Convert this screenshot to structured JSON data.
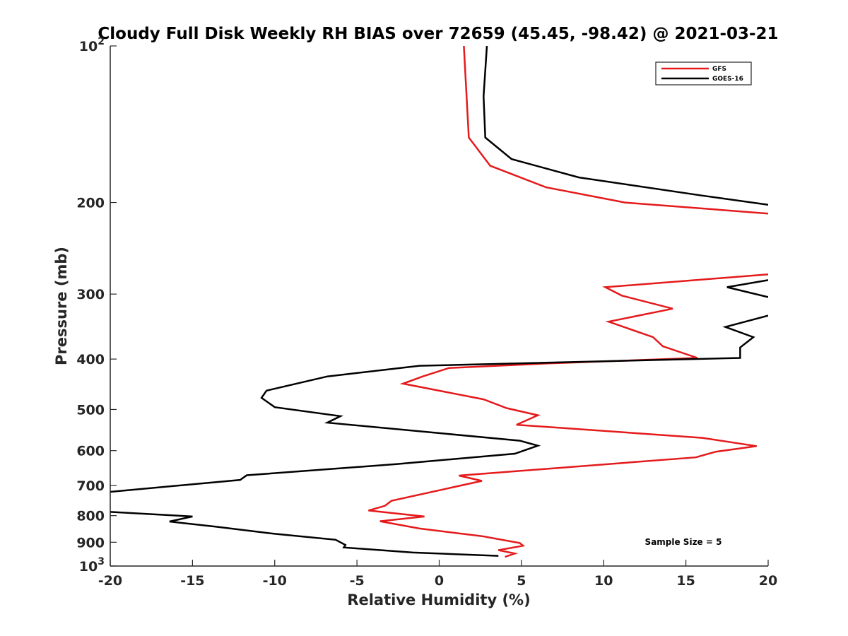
{
  "chart_data": {
    "type": "line",
    "title": "Cloudy Full Disk Weekly RH BIAS over 72659 (45.45, -98.42) @ 2021-03-21",
    "xlabel": "Relative Humidity (%)",
    "ylabel": "Pressure (mb)",
    "xlim": [
      -20,
      20
    ],
    "ylim": [
      100,
      1000
    ],
    "y_scale": "log",
    "y_reversed": true,
    "grid": false,
    "legend_position": "top-right",
    "x_ticks": [
      "-20",
      "-15",
      "-10",
      "-5",
      "0",
      "5",
      "10",
      "15",
      "20"
    ],
    "y_ticks": [
      {
        "value": 100,
        "label": "10",
        "exp": "2"
      },
      {
        "value": 200,
        "label": "200"
      },
      {
        "value": 300,
        "label": "300"
      },
      {
        "value": 400,
        "label": "400"
      },
      {
        "value": 500,
        "label": "500"
      },
      {
        "value": 600,
        "label": "600"
      },
      {
        "value": 700,
        "label": "700"
      },
      {
        "value": 800,
        "label": "800"
      },
      {
        "value": 900,
        "label": "900"
      },
      {
        "value": 1000,
        "label": "10",
        "exp": "3"
      }
    ],
    "annotation": "Sample Size = 5",
    "series": [
      {
        "name": "GFS",
        "color": "#e41a1c",
        "points": [
          [
            1.5,
            100
          ],
          [
            1.8,
            150
          ],
          [
            3.1,
            170
          ],
          [
            6.5,
            187
          ],
          [
            11.3,
            200
          ],
          [
            20,
            210
          ],
          [
            null,
            null
          ],
          [
            20,
            275
          ],
          [
            10.1,
            291
          ],
          [
            11.1,
            302
          ],
          [
            14.2,
            320
          ],
          [
            10.3,
            339
          ],
          [
            13.0,
            363
          ],
          [
            13.6,
            378
          ],
          [
            15.7,
            398
          ],
          [
            6.5,
            408
          ],
          [
            0.6,
            416
          ],
          [
            -1.0,
            432
          ],
          [
            -2.2,
            446
          ],
          [
            2.7,
            478
          ],
          [
            4.1,
            497
          ],
          [
            6.0,
            513
          ],
          [
            4.7,
            535
          ],
          [
            16.0,
            567
          ],
          [
            19.3,
            588
          ],
          [
            16.8,
            603
          ],
          [
            15.6,
            618
          ],
          [
            1.2,
            670
          ],
          [
            2.6,
            686
          ],
          [
            -2.9,
            749
          ],
          [
            -3.3,
            766
          ],
          [
            -4.3,
            782
          ],
          [
            -0.9,
            803
          ],
          [
            -3.6,
            820
          ],
          [
            -1.2,
            847
          ],
          [
            2.6,
            876
          ],
          [
            4.9,
            903
          ],
          [
            5.1,
            914
          ],
          [
            3.6,
            932
          ],
          [
            4.6,
            946
          ],
          [
            4.0,
            960
          ]
        ]
      },
      {
        "name": "GOES-16",
        "color": "#000000",
        "points": [
          [
            2.9,
            100
          ],
          [
            2.7,
            125
          ],
          [
            2.8,
            150
          ],
          [
            4.4,
            165
          ],
          [
            8.5,
            179
          ],
          [
            16.0,
            194
          ],
          [
            20,
            202
          ],
          [
            null,
            null
          ],
          [
            20,
            282
          ],
          [
            17.5,
            291
          ],
          [
            20,
            304
          ],
          [
            null,
            null
          ],
          [
            20,
            330
          ],
          [
            17.4,
            347
          ],
          [
            19.1,
            363
          ],
          [
            18.3,
            380
          ],
          [
            18.3,
            398
          ],
          [
            -1.2,
            412
          ],
          [
            -6.8,
            432
          ],
          [
            -10.5,
            460
          ],
          [
            -10.8,
            475
          ],
          [
            -10.0,
            495
          ],
          [
            -6.0,
            515
          ],
          [
            -6.8,
            530
          ],
          [
            4.9,
            574
          ],
          [
            6.0,
            587
          ],
          [
            4.6,
            608
          ],
          [
            -2.6,
            637
          ],
          [
            -11.7,
            669
          ],
          [
            -12.1,
            683
          ],
          [
            -20,
            720
          ],
          [
            null,
            null
          ],
          [
            -20,
            787
          ],
          [
            -15.0,
            803
          ],
          [
            -16.4,
            821
          ],
          [
            -13.6,
            840
          ],
          [
            -10.0,
            867
          ],
          [
            -6.3,
            890
          ],
          [
            -5.7,
            911
          ],
          [
            -5.8,
            921
          ],
          [
            -1.6,
            942
          ],
          [
            3.6,
            956
          ]
        ]
      }
    ]
  }
}
